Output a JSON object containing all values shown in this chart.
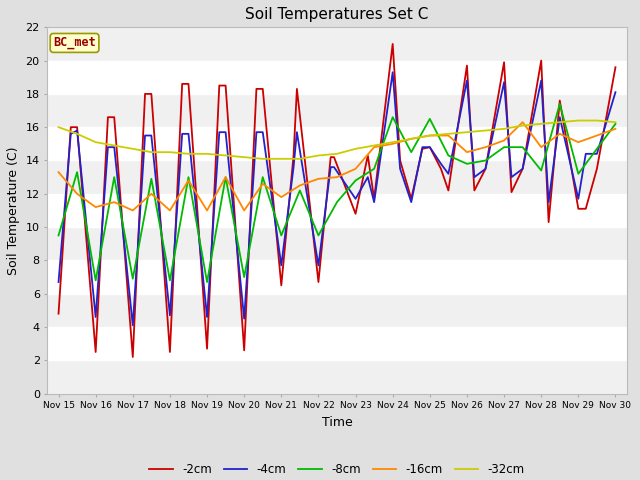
{
  "title": "Soil Temperatures Set C",
  "xlabel": "Time",
  "ylabel": "Soil Temperature (C)",
  "annotation": "BC_met",
  "ylim": [
    0,
    22
  ],
  "colors": {
    "-2cm": "#cc0000",
    "-4cm": "#2222cc",
    "-8cm": "#00bb00",
    "-16cm": "#ff8800",
    "-32cm": "#cccc00"
  },
  "xtick_labels": [
    "Nov 15",
    "Nov 16",
    "Nov 17",
    "Nov 18",
    "Nov 19",
    "Nov 20",
    "Nov 21",
    "Nov 22",
    "Nov 23",
    "Nov 24",
    "Nov 25",
    "Nov 26",
    "Nov 27",
    "Nov 28",
    "Nov 29",
    "Nov 30"
  ],
  "ytick_vals": [
    0,
    2,
    4,
    6,
    8,
    10,
    12,
    14,
    16,
    18,
    20,
    22
  ],
  "figure_bg": "#e0e0e0",
  "plot_bg": "#f0f0f0",
  "linewidth": 1.3,
  "x_2cm": [
    0,
    0.33,
    0.5,
    1.0,
    1.33,
    1.5,
    2.0,
    2.33,
    2.5,
    3.0,
    3.33,
    3.5,
    4.0,
    4.33,
    4.5,
    5.0,
    5.33,
    5.5,
    6.0,
    6.33,
    6.42,
    7.0,
    7.33,
    7.42,
    8.0,
    8.33,
    8.5,
    9.0,
    9.2,
    9.5,
    9.8,
    10.0,
    10.3,
    10.5,
    11.0,
    11.2,
    11.5,
    12.0,
    12.2,
    12.5,
    13.0,
    13.2,
    13.5,
    14.0,
    14.2,
    14.5,
    15.0
  ],
  "y_2cm": [
    4.8,
    16.0,
    16.0,
    2.5,
    16.6,
    16.6,
    2.2,
    18.0,
    18.0,
    2.5,
    18.6,
    18.6,
    2.7,
    18.5,
    18.5,
    2.6,
    18.3,
    18.3,
    6.5,
    14.3,
    18.3,
    6.7,
    14.2,
    14.2,
    10.8,
    14.3,
    11.7,
    21.0,
    14.0,
    11.7,
    14.7,
    14.8,
    13.5,
    12.2,
    19.7,
    12.2,
    13.5,
    19.9,
    12.1,
    13.5,
    20.0,
    10.3,
    17.6,
    11.1,
    11.1,
    13.5,
    19.6
  ],
  "x_4cm": [
    0,
    0.33,
    0.5,
    1.0,
    1.33,
    1.5,
    2.0,
    2.33,
    2.5,
    3.0,
    3.33,
    3.5,
    4.0,
    4.33,
    4.5,
    5.0,
    5.33,
    5.5,
    6.0,
    6.33,
    6.42,
    7.0,
    7.33,
    7.42,
    8.0,
    8.33,
    8.5,
    9.0,
    9.2,
    9.5,
    9.8,
    10.0,
    10.3,
    10.5,
    11.0,
    11.2,
    11.5,
    12.0,
    12.2,
    12.5,
    13.0,
    13.2,
    13.5,
    14.0,
    14.2,
    14.5,
    15.0
  ],
  "y_4cm": [
    6.7,
    15.6,
    15.8,
    4.6,
    14.8,
    14.8,
    4.1,
    15.5,
    15.5,
    4.7,
    15.6,
    15.6,
    4.6,
    15.7,
    15.7,
    4.5,
    15.7,
    15.7,
    7.7,
    13.6,
    15.7,
    7.7,
    13.6,
    13.6,
    11.7,
    13.0,
    11.5,
    19.3,
    13.5,
    11.5,
    14.8,
    14.8,
    13.8,
    13.2,
    18.8,
    13.0,
    13.5,
    18.7,
    13.0,
    13.5,
    18.8,
    11.5,
    16.6,
    11.7,
    14.4,
    14.4,
    18.1
  ],
  "x_8cm": [
    0,
    0.5,
    1.0,
    1.5,
    2.0,
    2.5,
    3.0,
    3.5,
    4.0,
    4.5,
    5.0,
    5.5,
    6.0,
    6.5,
    7.0,
    7.5,
    8.0,
    8.5,
    9.0,
    9.5,
    10.0,
    10.5,
    11.0,
    11.5,
    12.0,
    12.5,
    13.0,
    13.5,
    14.0,
    14.5,
    15.0
  ],
  "y_8cm": [
    9.5,
    13.3,
    6.8,
    13.0,
    6.9,
    12.9,
    6.8,
    13.0,
    6.7,
    13.0,
    7.0,
    13.0,
    9.5,
    12.2,
    9.5,
    11.5,
    12.8,
    13.5,
    16.6,
    14.5,
    16.5,
    14.3,
    13.8,
    14.0,
    14.8,
    14.8,
    13.4,
    17.4,
    13.2,
    14.7,
    16.2
  ],
  "x_16cm": [
    0,
    0.5,
    1.0,
    1.5,
    2.0,
    2.5,
    3.0,
    3.5,
    4.0,
    4.5,
    5.0,
    5.5,
    6.0,
    6.5,
    7.0,
    7.5,
    8.0,
    8.5,
    9.0,
    9.5,
    10.0,
    10.5,
    11.0,
    11.5,
    12.0,
    12.5,
    13.0,
    13.5,
    14.0,
    14.5,
    15.0
  ],
  "y_16cm": [
    13.3,
    12.0,
    11.2,
    11.5,
    11.0,
    12.0,
    11.0,
    12.8,
    11.0,
    13.0,
    11.0,
    12.6,
    11.8,
    12.5,
    12.9,
    13.0,
    13.5,
    14.8,
    15.0,
    15.3,
    15.5,
    15.5,
    14.5,
    14.8,
    15.2,
    16.3,
    14.8,
    15.6,
    15.1,
    15.5,
    15.9
  ],
  "x_32cm": [
    0,
    0.5,
    1.0,
    1.5,
    2.0,
    2.5,
    3.0,
    3.5,
    4.0,
    4.5,
    5.0,
    5.5,
    6.0,
    6.5,
    7.0,
    7.5,
    8.0,
    8.5,
    9.0,
    9.5,
    10.0,
    10.5,
    11.0,
    11.5,
    12.0,
    12.5,
    13.0,
    13.5,
    14.0,
    14.5,
    15.0
  ],
  "y_32cm": [
    16.0,
    15.6,
    15.1,
    14.9,
    14.7,
    14.5,
    14.5,
    14.4,
    14.4,
    14.3,
    14.2,
    14.1,
    14.1,
    14.1,
    14.3,
    14.4,
    14.7,
    14.9,
    15.1,
    15.3,
    15.5,
    15.6,
    15.7,
    15.8,
    15.9,
    16.1,
    16.2,
    16.3,
    16.4,
    16.4,
    16.3
  ]
}
